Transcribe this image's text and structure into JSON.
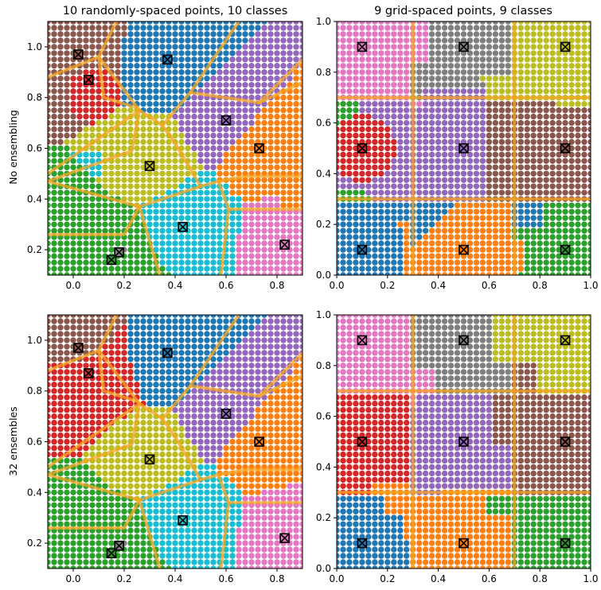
{
  "figure": {
    "titles": [
      "10 randomly-spaced points, 10 classes",
      "9 grid-spaced points, 9 classes"
    ],
    "row_labels": [
      "No ensembling",
      "32 ensembles"
    ]
  },
  "colors": {
    "palette": [
      "#1f77b4",
      "#ff7f0e",
      "#2ca02c",
      "#d62728",
      "#9467bd",
      "#8c564b",
      "#e377c2",
      "#7f7f7f",
      "#bcbd22",
      "#17becf"
    ],
    "boundary": "#f5a623",
    "marker": "#000000"
  },
  "chart_data": [
    {
      "type": "scatter",
      "subtype": "classification-regions",
      "title": "10 randomly-spaced points, 10 classes",
      "row_label": "No ensembling",
      "xlim": [
        -0.1,
        0.9
      ],
      "ylim": [
        0.1,
        1.1
      ],
      "xticks": [
        "0.0",
        "0.2",
        "0.4",
        "0.6",
        "0.8"
      ],
      "xtick_values": [
        0.0,
        0.2,
        0.4,
        0.6,
        0.8
      ],
      "yticks": [
        "0.2",
        "0.4",
        "0.6",
        "0.8",
        "1.0"
      ],
      "ytick_values": [
        0.2,
        0.4,
        0.6,
        0.8,
        1.0
      ],
      "grid": false,
      "legend": "none",
      "training_points": [
        {
          "x": 0.02,
          "y": 0.97,
          "class": 5
        },
        {
          "x": 0.37,
          "y": 0.95,
          "class": 0
        },
        {
          "x": 0.06,
          "y": 0.87,
          "class": 3
        },
        {
          "x": 0.6,
          "y": 0.71,
          "class": 4
        },
        {
          "x": 0.73,
          "y": 0.6,
          "class": 1
        },
        {
          "x": 0.3,
          "y": 0.53,
          "class": 8
        },
        {
          "x": 0.43,
          "y": 0.29,
          "class": 9
        },
        {
          "x": 0.83,
          "y": 0.22,
          "class": 6
        },
        {
          "x": 0.18,
          "y": 0.19,
          "class": 7
        },
        {
          "x": 0.15,
          "y": 0.16,
          "class": 2
        }
      ]
    },
    {
      "type": "scatter",
      "subtype": "classification-regions",
      "title": "9 grid-spaced points, 9 classes",
      "row_label": "No ensembling",
      "xlim": [
        0.0,
        1.0
      ],
      "ylim": [
        0.0,
        1.0
      ],
      "xticks": [
        "0.0",
        "0.2",
        "0.4",
        "0.6",
        "0.8",
        "1.0"
      ],
      "xtick_values": [
        0.0,
        0.2,
        0.4,
        0.6,
        0.8,
        1.0
      ],
      "yticks": [
        "0.0",
        "0.2",
        "0.4",
        "0.6",
        "0.8",
        "1.0"
      ],
      "ytick_values": [
        0.0,
        0.2,
        0.4,
        0.6,
        0.8,
        1.0
      ],
      "grid": false,
      "legend": "none",
      "training_points": [
        {
          "x": 0.1,
          "y": 0.9,
          "class": 6
        },
        {
          "x": 0.5,
          "y": 0.9,
          "class": 7
        },
        {
          "x": 0.9,
          "y": 0.9,
          "class": 8
        },
        {
          "x": 0.1,
          "y": 0.5,
          "class": 3
        },
        {
          "x": 0.5,
          "y": 0.5,
          "class": 4
        },
        {
          "x": 0.9,
          "y": 0.5,
          "class": 5
        },
        {
          "x": 0.1,
          "y": 0.1,
          "class": 0
        },
        {
          "x": 0.5,
          "y": 0.1,
          "class": 1
        },
        {
          "x": 0.9,
          "y": 0.1,
          "class": 2
        }
      ]
    },
    {
      "type": "scatter",
      "subtype": "classification-regions",
      "title": "",
      "row_label": "32 ensembles",
      "xlim": [
        -0.1,
        0.9
      ],
      "ylim": [
        0.1,
        1.1
      ],
      "xticks": [
        "0.0",
        "0.2",
        "0.4",
        "0.6",
        "0.8"
      ],
      "xtick_values": [
        0.0,
        0.2,
        0.4,
        0.6,
        0.8
      ],
      "yticks": [
        "0.2",
        "0.4",
        "0.6",
        "0.8",
        "1.0"
      ],
      "ytick_values": [
        0.2,
        0.4,
        0.6,
        0.8,
        1.0
      ],
      "grid": false,
      "legend": "none",
      "training_points": [
        {
          "x": 0.02,
          "y": 0.97,
          "class": 5
        },
        {
          "x": 0.37,
          "y": 0.95,
          "class": 0
        },
        {
          "x": 0.06,
          "y": 0.87,
          "class": 3
        },
        {
          "x": 0.6,
          "y": 0.71,
          "class": 4
        },
        {
          "x": 0.73,
          "y": 0.6,
          "class": 1
        },
        {
          "x": 0.3,
          "y": 0.53,
          "class": 8
        },
        {
          "x": 0.43,
          "y": 0.29,
          "class": 9
        },
        {
          "x": 0.83,
          "y": 0.22,
          "class": 6
        },
        {
          "x": 0.18,
          "y": 0.19,
          "class": 7
        },
        {
          "x": 0.15,
          "y": 0.16,
          "class": 2
        }
      ]
    },
    {
      "type": "scatter",
      "subtype": "classification-regions",
      "title": "",
      "row_label": "32 ensembles",
      "xlim": [
        0.0,
        1.0
      ],
      "ylim": [
        0.0,
        1.0
      ],
      "xticks": [
        "0.0",
        "0.2",
        "0.4",
        "0.6",
        "0.8",
        "1.0"
      ],
      "xtick_values": [
        0.0,
        0.2,
        0.4,
        0.6,
        0.8,
        1.0
      ],
      "yticks": [
        "0.0",
        "0.2",
        "0.4",
        "0.6",
        "0.8",
        "1.0"
      ],
      "ytick_values": [
        0.0,
        0.2,
        0.4,
        0.6,
        0.8,
        1.0
      ],
      "grid": false,
      "legend": "none",
      "training_points": [
        {
          "x": 0.1,
          "y": 0.9,
          "class": 6
        },
        {
          "x": 0.5,
          "y": 0.9,
          "class": 7
        },
        {
          "x": 0.9,
          "y": 0.9,
          "class": 8
        },
        {
          "x": 0.1,
          "y": 0.5,
          "class": 3
        },
        {
          "x": 0.5,
          "y": 0.5,
          "class": 4
        },
        {
          "x": 0.9,
          "y": 0.5,
          "class": 5
        },
        {
          "x": 0.1,
          "y": 0.1,
          "class": 0
        },
        {
          "x": 0.5,
          "y": 0.1,
          "class": 1
        },
        {
          "x": 0.9,
          "y": 0.1,
          "class": 2
        }
      ]
    }
  ]
}
